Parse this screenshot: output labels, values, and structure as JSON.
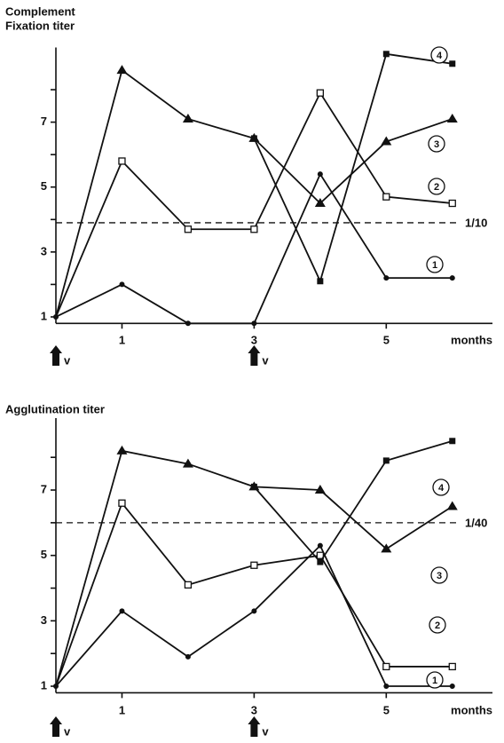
{
  "chart_data": [
    {
      "type": "line",
      "y_label": [
        "Complement",
        "Fixation titer"
      ],
      "x_label": "months",
      "x": [
        0,
        1,
        2,
        3,
        4,
        5,
        6
      ],
      "xlim": [
        0,
        6.5
      ],
      "xticks": [
        1,
        3,
        5
      ],
      "ylim": [
        0.8,
        9.3
      ],
      "yticks": [
        1,
        3,
        5,
        7
      ],
      "yticks_minor": [
        2,
        4,
        6,
        8
      ],
      "reference_line": {
        "value": 3.9,
        "label": "1/10"
      },
      "annotations": [
        {
          "x": 0,
          "label": "v"
        },
        {
          "x": 3,
          "label": "v"
        }
      ],
      "series": [
        {
          "name": "1",
          "marker": "circle",
          "color": "#111",
          "values": [
            1,
            2,
            0.8,
            0.8,
            5.4,
            2.2,
            2.2
          ]
        },
        {
          "name": "2",
          "marker": "square-open",
          "color": "#111",
          "values": [
            1,
            5.8,
            3.7,
            3.7,
            7.9,
            4.7,
            4.5
          ]
        },
        {
          "name": "3",
          "marker": "triangle",
          "color": "#111",
          "values": [
            1,
            8.6,
            7.1,
            6.5,
            4.5,
            6.4,
            7.1
          ]
        },
        {
          "name": "4",
          "marker": "square",
          "color": "#111",
          "values": [
            null,
            null,
            null,
            6.5,
            2.1,
            9.1,
            8.8
          ]
        }
      ]
    },
    {
      "type": "line",
      "y_label": [
        "Agglutination titer"
      ],
      "x_label": "months",
      "x": [
        0,
        1,
        2,
        3,
        4,
        5,
        6
      ],
      "xlim": [
        0,
        6.5
      ],
      "xticks": [
        1,
        3,
        5
      ],
      "ylim": [
        0.8,
        9.2
      ],
      "yticks": [
        1,
        3,
        5,
        7
      ],
      "yticks_minor": [
        2,
        4,
        6,
        8
      ],
      "reference_line": {
        "value": 6.0,
        "label": "1/40"
      },
      "annotations": [
        {
          "x": 0,
          "label": "v"
        },
        {
          "x": 3,
          "label": "v"
        }
      ],
      "series": [
        {
          "name": "1",
          "marker": "circle",
          "color": "#111",
          "values": [
            1,
            3.3,
            1.9,
            3.3,
            5.3,
            1,
            1
          ]
        },
        {
          "name": "2",
          "marker": "square-open",
          "color": "#111",
          "values": [
            1,
            6.6,
            4.1,
            4.7,
            5.0,
            1.6,
            1.6
          ]
        },
        {
          "name": "3",
          "marker": "triangle",
          "color": "#111",
          "values": [
            1,
            8.2,
            7.8,
            7.1,
            7.0,
            5.2,
            6.5
          ]
        },
        {
          "name": "4",
          "marker": "square",
          "color": "#111",
          "values": [
            null,
            null,
            null,
            7.1,
            4.8,
            7.9,
            8.5
          ]
        }
      ]
    }
  ]
}
